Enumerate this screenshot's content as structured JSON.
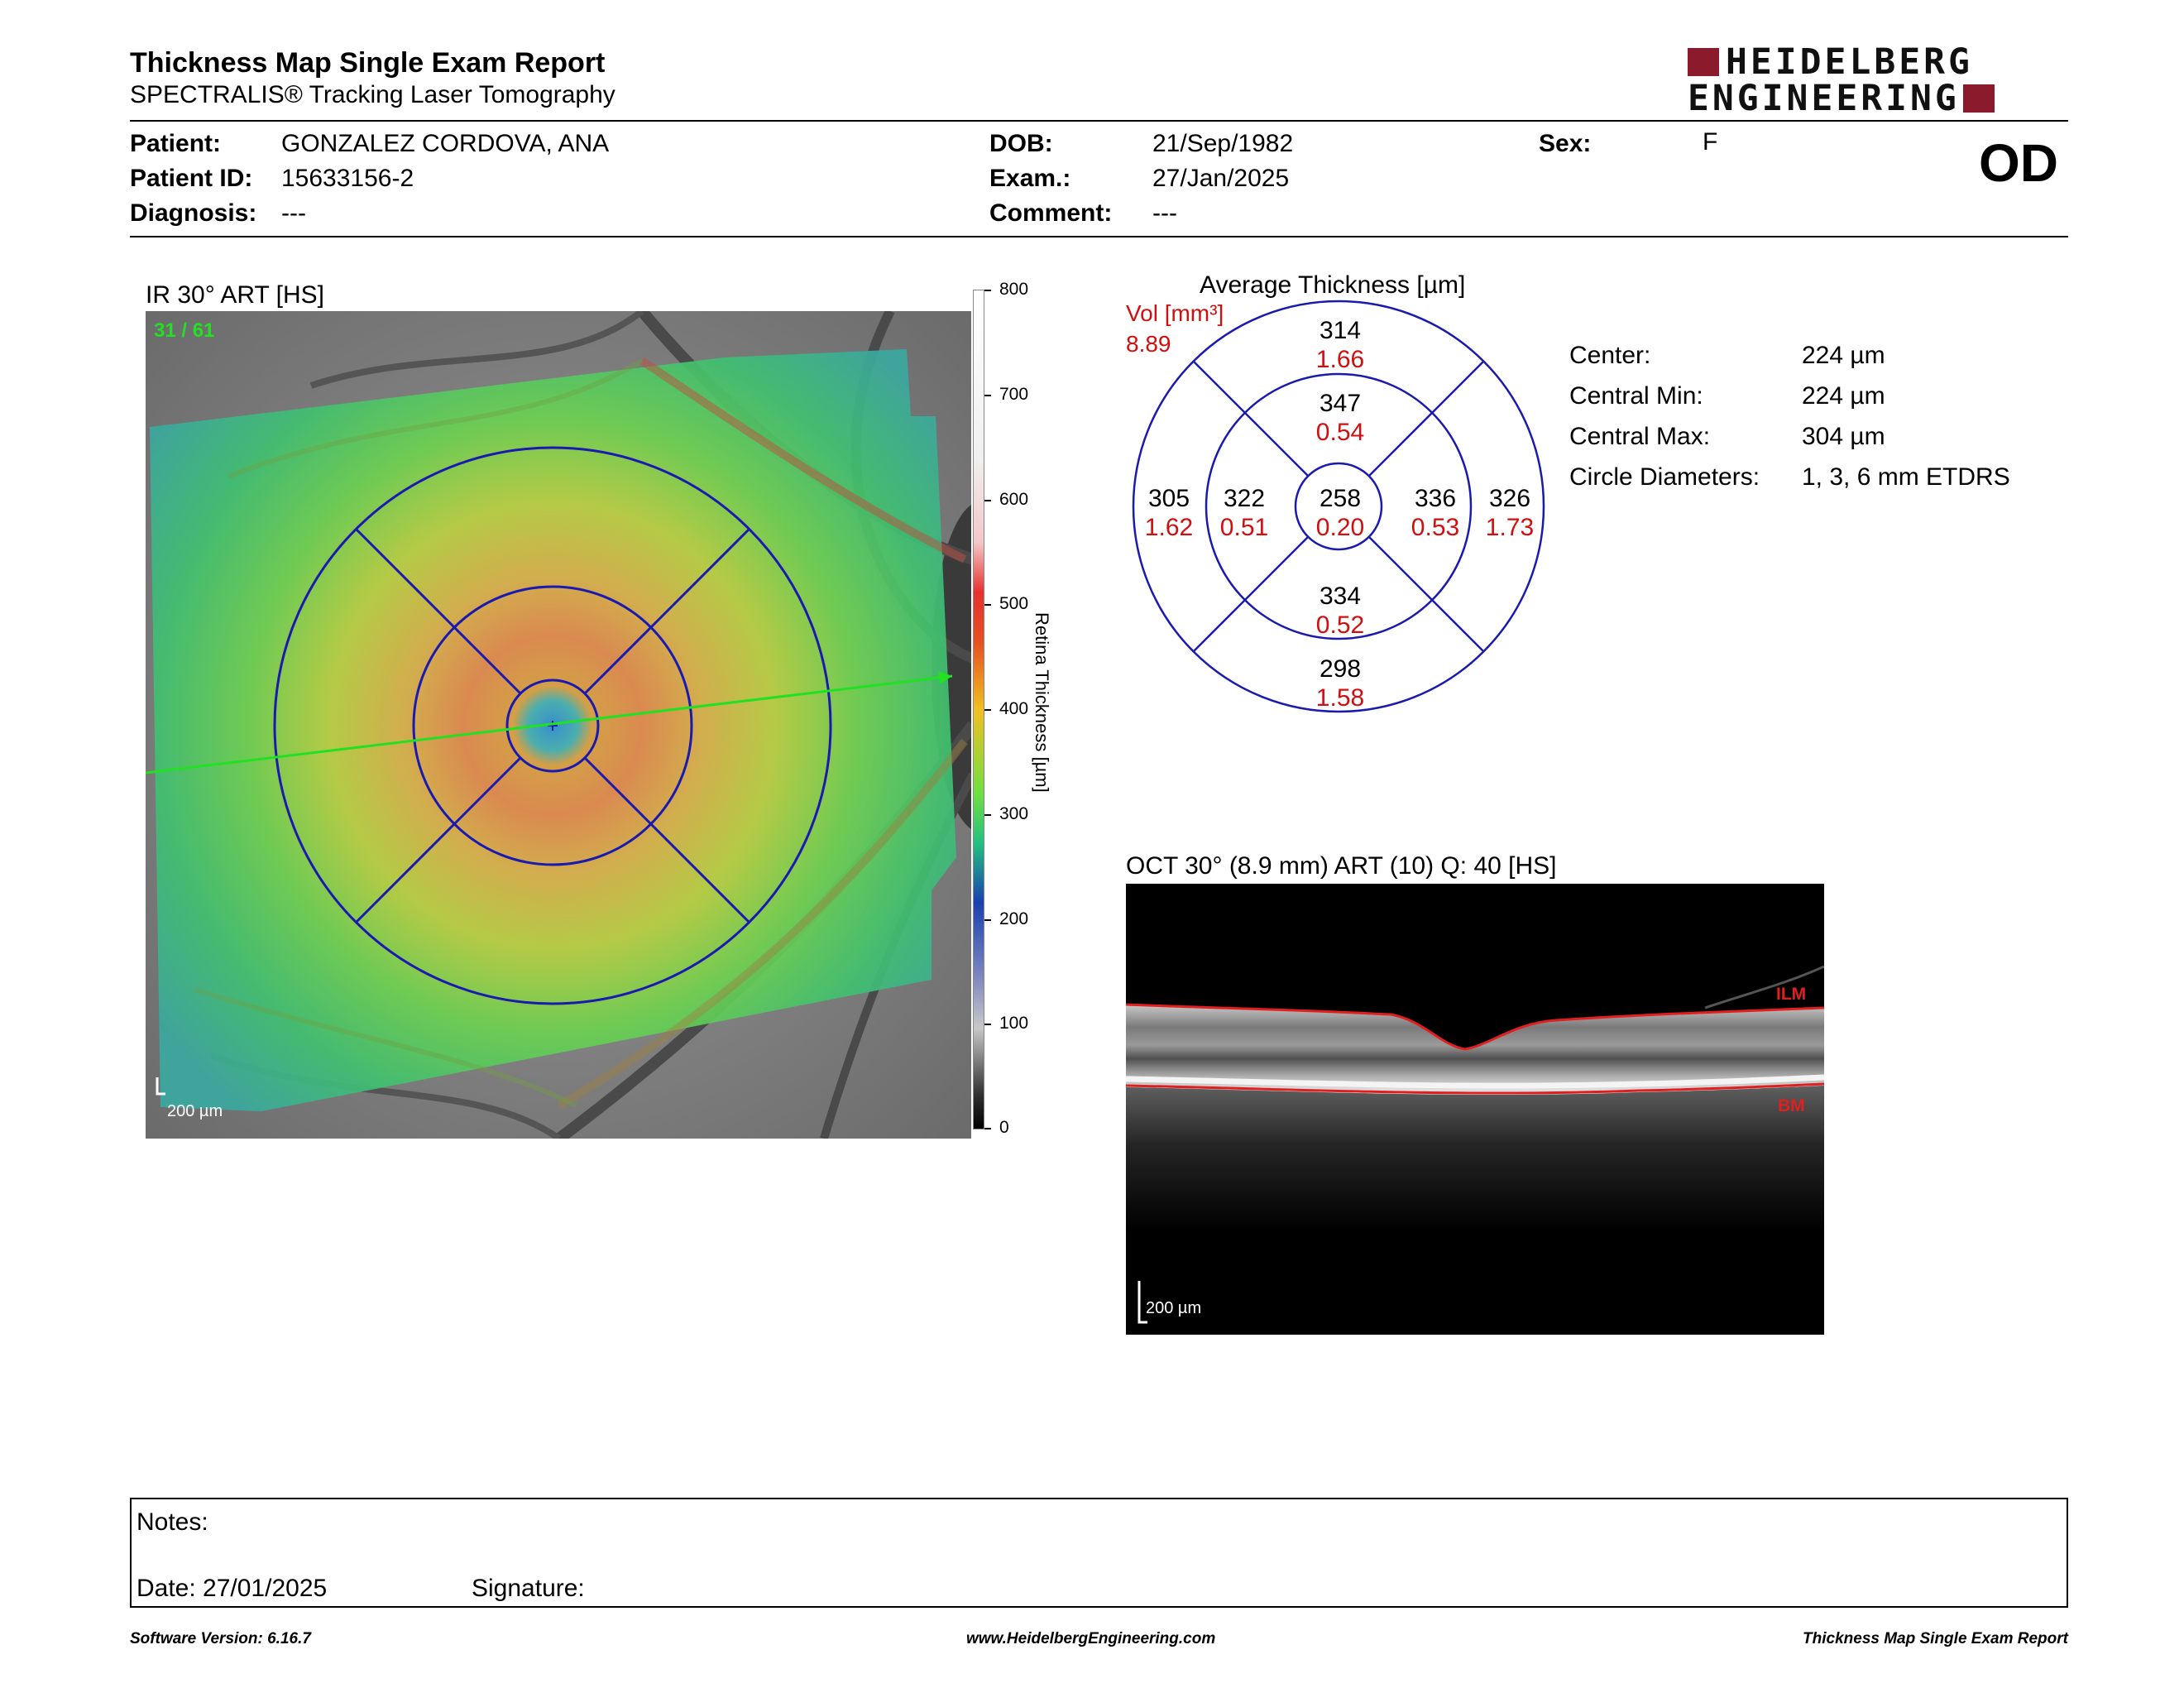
{
  "report": {
    "title": "Thickness Map Single Exam Report",
    "subtitle": "SPECTRALIS® Tracking Laser Tomography",
    "logo_line1": "HEIDELBERG",
    "logo_line2": "ENGINEERING",
    "eye": "OD"
  },
  "patient": {
    "patient_label": "Patient:",
    "patient_value": "GONZALEZ CORDOVA, ANA",
    "id_label": "Patient ID:",
    "id_value": "15633156-2",
    "diagnosis_label": "Diagnosis:",
    "diagnosis_value": "---",
    "dob_label": "DOB:",
    "dob_value": "21/Sep/1982",
    "exam_label": "Exam.:",
    "exam_value": "27/Jan/2025",
    "comment_label": "Comment:",
    "comment_value": "---",
    "sex_label": "Sex:",
    "sex_value": "F"
  },
  "fundus": {
    "title": "IR 30° ART [HS]",
    "scan_index": "31 / 61",
    "scale_bar": "200 µm",
    "colorbar_label": "Retina  Thickness [µm]",
    "colorbar_ticks": [
      "800",
      "700",
      "600",
      "500",
      "400",
      "300",
      "200",
      "100",
      "0"
    ]
  },
  "etdrs": {
    "title": "Average Thickness [µm]",
    "vol_label": "Vol [mm³]",
    "vol_value": "8.89",
    "center": {
      "thickness": "258",
      "volume": "0.20"
    },
    "inner_superior": {
      "thickness": "347",
      "volume": "0.54"
    },
    "inner_nasal": {
      "thickness": "336",
      "volume": "0.53"
    },
    "inner_inferior": {
      "thickness": "334",
      "volume": "0.52"
    },
    "inner_temporal": {
      "thickness": "322",
      "volume": "0.51"
    },
    "outer_superior": {
      "thickness": "314",
      "volume": "1.66"
    },
    "outer_nasal": {
      "thickness": "326",
      "volume": "1.73"
    },
    "outer_inferior": {
      "thickness": "298",
      "volume": "1.58"
    },
    "outer_temporal": {
      "thickness": "305",
      "volume": "1.62"
    }
  },
  "stats": {
    "center_label": "Center:",
    "center_value": "224 µm",
    "min_label": "Central Min:",
    "min_value": "224 µm",
    "max_label": "Central Max:",
    "max_value": "304 µm",
    "diam_label": "Circle Diameters:",
    "diam_value": "1, 3, 6 mm ETDRS"
  },
  "oct": {
    "title": "OCT 30° (8.9 mm) ART (10) Q: 40 [HS]",
    "ilm_label": "ILM",
    "bm_label": "BM",
    "scale_bar": "200 µm"
  },
  "notes": {
    "notes_label": "Notes:",
    "date_label": "Date: 27/01/2025",
    "signature_label": "Signature:"
  },
  "footer": {
    "software": "Software Version: 6.16.7",
    "website": "www.HeidelbergEngineering.com",
    "report_name": "Thickness Map Single Exam Report"
  }
}
